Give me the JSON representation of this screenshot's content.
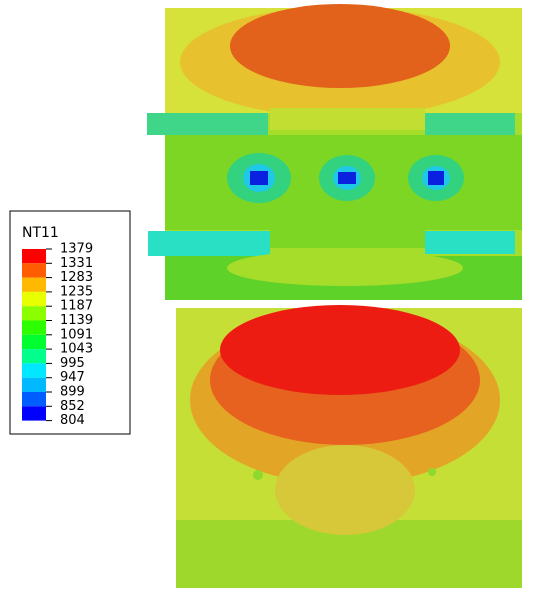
{
  "legend": {
    "title": "NT11",
    "labels": [
      1379,
      1331,
      1283,
      1235,
      1187,
      1139,
      1091,
      1043,
      995,
      947,
      899,
      852,
      804
    ],
    "colors": [
      "#ff0000",
      "#ff5d00",
      "#ffb900",
      "#e8ff00",
      "#8bff00",
      "#2eff00",
      "#00ff2e",
      "#00ff8b",
      "#00e8ff",
      "#00b9ff",
      "#005dff",
      "#0000ff"
    ]
  }
}
